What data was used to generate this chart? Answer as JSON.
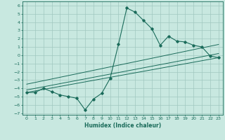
{
  "xlabel": "Humidex (Indice chaleur)",
  "bg_color": "#c8e8e0",
  "grid_color": "#a0c8c0",
  "line_color": "#1a6b5a",
  "xlim": [
    -0.5,
    23.5
  ],
  "ylim": [
    -7.2,
    6.5
  ],
  "xticks": [
    0,
    1,
    2,
    3,
    4,
    5,
    6,
    7,
    8,
    9,
    10,
    11,
    12,
    13,
    14,
    15,
    16,
    17,
    18,
    19,
    20,
    21,
    22,
    23
  ],
  "yticks": [
    -7,
    -6,
    -5,
    -4,
    -3,
    -2,
    -1,
    0,
    1,
    2,
    3,
    4,
    5,
    6
  ],
  "scatter_x": [
    0,
    1,
    2,
    3,
    4,
    5,
    6,
    7,
    8,
    9,
    10,
    11,
    12,
    13,
    14,
    15,
    16,
    17,
    18,
    19,
    20,
    21,
    22,
    23
  ],
  "scatter_y": [
    -4.5,
    -4.5,
    -4.0,
    -4.4,
    -4.8,
    -5.0,
    -5.2,
    -6.6,
    -5.3,
    -4.6,
    -2.8,
    1.3,
    5.7,
    5.2,
    4.2,
    3.2,
    1.2,
    2.3,
    1.7,
    1.6,
    1.2,
    1.0,
    -0.1,
    -0.3
  ],
  "line1_x": [
    0,
    23
  ],
  "line1_y": [
    -4.5,
    -0.3
  ],
  "line2_x": [
    0,
    23
  ],
  "line2_y": [
    -4.2,
    0.2
  ],
  "line3_x": [
    0,
    23
  ],
  "line3_y": [
    -3.5,
    1.3
  ]
}
